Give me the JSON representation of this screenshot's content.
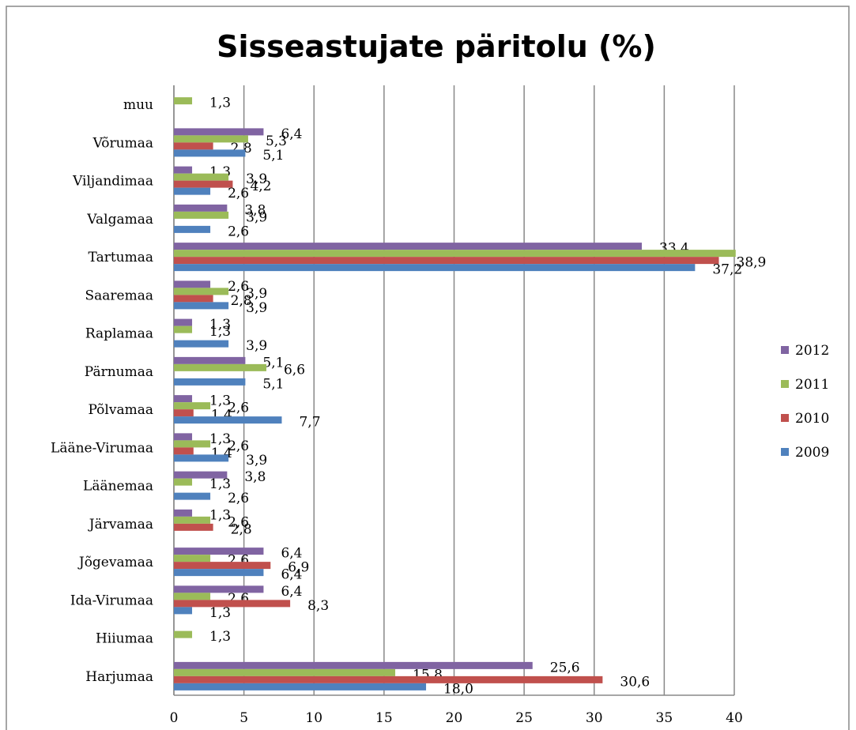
{
  "chart_data": {
    "type": "bar",
    "orientation": "horizontal",
    "title": "Sisseastujate päritolu (%)",
    "categories": [
      "Harjumaa",
      "Hiiumaa",
      "Ida-Virumaa",
      "Jõgevamaa",
      "Järvamaa",
      "Läänemaa",
      "Lääne-Virumaa",
      "Põlvamaa",
      "Pärnumaa",
      "Raplamaa",
      "Saaremaa",
      "Tartumaa",
      "Valgamaa",
      "Viljandimaa",
      "Võrumaa",
      "muu"
    ],
    "series": [
      {
        "name": "2012",
        "color": "#8064a2",
        "values": [
          25.6,
          null,
          6.4,
          6.4,
          1.3,
          3.8,
          1.3,
          1.3,
          5.1,
          1.3,
          2.6,
          33.4,
          3.8,
          1.3,
          6.4,
          null
        ],
        "value_labels": [
          "25,6",
          null,
          "6,4",
          "6,4",
          "1,3",
          "3,8",
          "1,3",
          "1,3",
          "5,1",
          "1,3",
          "2,6",
          "33,4",
          "3,8",
          "1,3",
          "6,4",
          null
        ]
      },
      {
        "name": "2011",
        "color": "#9bbb59",
        "values": [
          15.8,
          1.3,
          2.6,
          2.6,
          2.6,
          1.3,
          2.6,
          2.6,
          6.6,
          1.3,
          3.9,
          40.1,
          3.9,
          3.9,
          5.3,
          1.3
        ],
        "value_labels": [
          "15,8",
          "1,3",
          "2,6",
          "2,6",
          "2,6",
          "1,3",
          "2,6",
          "2,6",
          "6,6",
          "1,3",
          "3,9",
          null,
          "3,9",
          "3,9",
          "5,3",
          "1,3"
        ]
      },
      {
        "name": "2010",
        "color": "#c0504d",
        "values": [
          30.6,
          null,
          8.3,
          6.9,
          2.8,
          null,
          1.4,
          1.4,
          null,
          null,
          2.8,
          38.9,
          null,
          4.2,
          2.8,
          null
        ],
        "value_labels": [
          "30,6",
          null,
          "8,3",
          "6,9",
          "2,8",
          null,
          "1,4",
          "1,4",
          null,
          null,
          "2,8",
          "38,9",
          null,
          "4,2",
          "2,8",
          null
        ]
      },
      {
        "name": "2009",
        "color": "#4f81bd",
        "values": [
          18.0,
          null,
          1.3,
          6.4,
          null,
          2.6,
          3.9,
          7.7,
          5.1,
          3.9,
          3.9,
          37.2,
          2.6,
          2.6,
          5.1,
          null
        ],
        "value_labels": [
          "18,0",
          null,
          "1,3",
          "6,4",
          null,
          "2,6",
          "3,9",
          "7,7",
          "5,1",
          "3,9",
          "3,9",
          "37,2",
          "2,6",
          "2,6",
          "5,1",
          null
        ]
      }
    ],
    "xlim": [
      0,
      40
    ],
    "xticks": [
      0,
      5,
      10,
      15,
      20,
      25,
      30,
      35,
      40
    ],
    "grid": true,
    "legend": "right"
  }
}
